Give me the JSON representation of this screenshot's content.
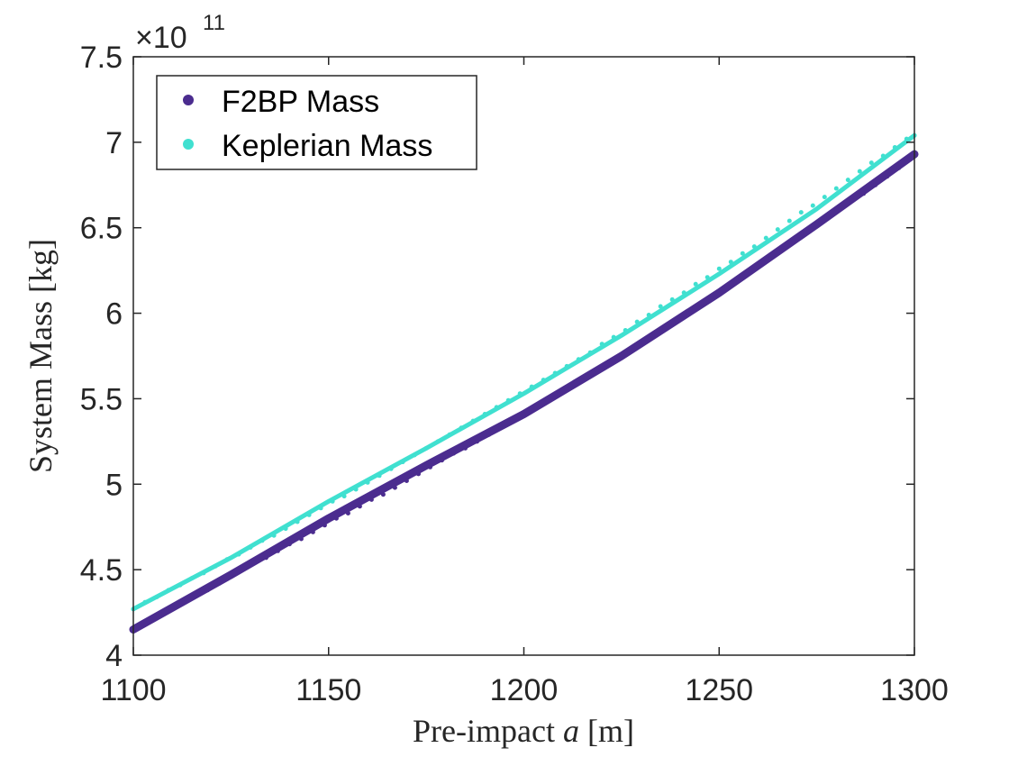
{
  "chart_data": {
    "type": "scatter",
    "title": "",
    "xlabel_prefix": "Pre-impact ",
    "xlabel_var": "a",
    "xlabel_suffix": " [m]",
    "ylabel": "System Mass [kg]",
    "xlim": [
      1100,
      1300
    ],
    "ylim": [
      4.0,
      7.5
    ],
    "xticks": [
      "1100",
      "1150",
      "1200",
      "1250",
      "1300"
    ],
    "yticks": [
      "4",
      "4.5",
      "5",
      "5.5",
      "6",
      "6.5",
      "7",
      "7.5"
    ],
    "y_multiplier_base": "×10",
    "y_multiplier_exp": "11",
    "grid": false,
    "legend_position": "top-left",
    "series": [
      {
        "name": "F2BP Mass",
        "color": "#4b2c8f",
        "trend": [
          [
            1100,
            4.15
          ],
          [
            1125,
            4.47
          ],
          [
            1150,
            4.8
          ],
          [
            1175,
            5.11
          ],
          [
            1200,
            5.41
          ],
          [
            1225,
            5.75
          ],
          [
            1250,
            6.12
          ],
          [
            1275,
            6.52
          ],
          [
            1300,
            6.93
          ]
        ],
        "points": [
          [
            1101,
            4.17
          ],
          [
            1104,
            4.2
          ],
          [
            1107,
            4.24
          ],
          [
            1110,
            4.28
          ],
          [
            1113,
            4.31
          ],
          [
            1116,
            4.35
          ],
          [
            1119,
            4.38
          ],
          [
            1122,
            4.42
          ],
          [
            1125,
            4.47
          ],
          [
            1128,
            4.5
          ],
          [
            1131,
            4.54
          ],
          [
            1134,
            4.57
          ],
          [
            1137,
            4.61
          ],
          [
            1140,
            4.65
          ],
          [
            1143,
            4.68
          ],
          [
            1146,
            4.72
          ],
          [
            1149,
            4.76
          ],
          [
            1152,
            4.8
          ],
          [
            1155,
            4.83
          ],
          [
            1158,
            4.87
          ],
          [
            1161,
            4.91
          ],
          [
            1164,
            4.94
          ],
          [
            1167,
            4.98
          ],
          [
            1170,
            5.02
          ],
          [
            1173,
            5.06
          ],
          [
            1176,
            5.1
          ],
          [
            1179,
            5.14
          ],
          [
            1182,
            5.18
          ],
          [
            1185,
            5.21
          ],
          [
            1188,
            5.25
          ],
          [
            1191,
            5.29
          ],
          [
            1194,
            5.33
          ],
          [
            1197,
            5.37
          ],
          [
            1200,
            5.41
          ],
          [
            1203,
            5.45
          ],
          [
            1206,
            5.49
          ],
          [
            1209,
            5.53
          ],
          [
            1212,
            5.57
          ],
          [
            1215,
            5.61
          ],
          [
            1218,
            5.65
          ],
          [
            1221,
            5.7
          ],
          [
            1224,
            5.74
          ],
          [
            1227,
            5.78
          ],
          [
            1230,
            5.82
          ],
          [
            1233,
            5.87
          ],
          [
            1236,
            5.91
          ],
          [
            1239,
            5.96
          ],
          [
            1242,
            6.0
          ],
          [
            1245,
            6.05
          ],
          [
            1248,
            6.09
          ],
          [
            1251,
            6.14
          ],
          [
            1254,
            6.18
          ],
          [
            1257,
            6.23
          ],
          [
            1260,
            6.27
          ],
          [
            1263,
            6.32
          ],
          [
            1266,
            6.37
          ],
          [
            1269,
            6.42
          ],
          [
            1272,
            6.47
          ],
          [
            1275,
            6.52
          ],
          [
            1278,
            6.57
          ],
          [
            1281,
            6.62
          ],
          [
            1284,
            6.66
          ],
          [
            1287,
            6.7
          ],
          [
            1290,
            6.75
          ],
          [
            1293,
            6.8
          ],
          [
            1296,
            6.85
          ],
          [
            1299,
            6.92
          ]
        ]
      },
      {
        "name": "Keplerian Mass",
        "color": "#40e0d0",
        "trend": [
          [
            1100,
            4.27
          ],
          [
            1125,
            4.57
          ],
          [
            1150,
            4.9
          ],
          [
            1175,
            5.21
          ],
          [
            1200,
            5.53
          ],
          [
            1225,
            5.87
          ],
          [
            1250,
            6.23
          ],
          [
            1275,
            6.61
          ],
          [
            1300,
            7.04
          ]
        ],
        "points": [
          [
            1100,
            4.27
          ],
          [
            1103,
            4.31
          ],
          [
            1106,
            4.34
          ],
          [
            1109,
            4.38
          ],
          [
            1112,
            4.41
          ],
          [
            1115,
            4.45
          ],
          [
            1118,
            4.48
          ],
          [
            1121,
            4.52
          ],
          [
            1124,
            4.56
          ],
          [
            1127,
            4.59
          ],
          [
            1130,
            4.63
          ],
          [
            1133,
            4.67
          ],
          [
            1136,
            4.7
          ],
          [
            1139,
            4.74
          ],
          [
            1142,
            4.78
          ],
          [
            1145,
            4.82
          ],
          [
            1148,
            4.86
          ],
          [
            1151,
            4.9
          ],
          [
            1154,
            4.93
          ],
          [
            1157,
            4.97
          ],
          [
            1160,
            5.01
          ],
          [
            1163,
            5.05
          ],
          [
            1166,
            5.09
          ],
          [
            1169,
            5.13
          ],
          [
            1172,
            5.17
          ],
          [
            1175,
            5.21
          ],
          [
            1178,
            5.25
          ],
          [
            1181,
            5.29
          ],
          [
            1184,
            5.33
          ],
          [
            1187,
            5.37
          ],
          [
            1190,
            5.41
          ],
          [
            1193,
            5.45
          ],
          [
            1196,
            5.49
          ],
          [
            1199,
            5.53
          ],
          [
            1202,
            5.57
          ],
          [
            1205,
            5.61
          ],
          [
            1208,
            5.65
          ],
          [
            1211,
            5.69
          ],
          [
            1214,
            5.73
          ],
          [
            1217,
            5.77
          ],
          [
            1220,
            5.82
          ],
          [
            1223,
            5.86
          ],
          [
            1226,
            5.9
          ],
          [
            1229,
            5.95
          ],
          [
            1232,
            5.99
          ],
          [
            1235,
            6.04
          ],
          [
            1238,
            6.08
          ],
          [
            1241,
            6.12
          ],
          [
            1244,
            6.17
          ],
          [
            1247,
            6.21
          ],
          [
            1250,
            6.26
          ],
          [
            1253,
            6.3
          ],
          [
            1256,
            6.35
          ],
          [
            1259,
            6.39
          ],
          [
            1262,
            6.44
          ],
          [
            1265,
            6.49
          ],
          [
            1268,
            6.54
          ],
          [
            1271,
            6.59
          ],
          [
            1274,
            6.63
          ],
          [
            1277,
            6.68
          ],
          [
            1280,
            6.73
          ],
          [
            1283,
            6.78
          ],
          [
            1286,
            6.83
          ],
          [
            1289,
            6.88
          ],
          [
            1292,
            6.92
          ],
          [
            1295,
            6.97
          ],
          [
            1298,
            7.02
          ],
          [
            1300,
            7.04
          ]
        ]
      }
    ]
  }
}
